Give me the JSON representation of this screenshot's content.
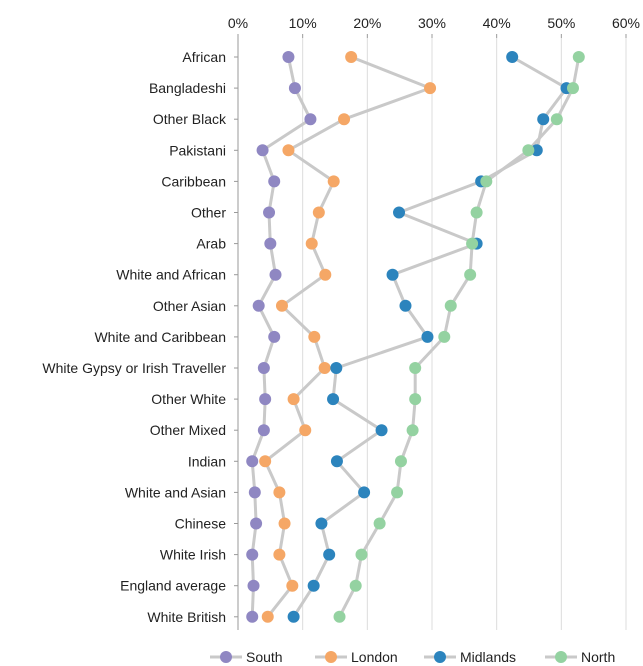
{
  "chart_data": {
    "type": "scatter",
    "orientation": "horizontal",
    "x_ticks": [
      "0%",
      "10%",
      "20%",
      "30%",
      "40%",
      "50%",
      "60%"
    ],
    "xlim": [
      0,
      60
    ],
    "x_axis_position": "top",
    "grid": "vertical",
    "legend_position": "bottom",
    "connector_color": "#c9c9c9",
    "categories": [
      "African",
      "Bangladeshi",
      "Other Black",
      "Pakistani",
      "Caribbean",
      "Other",
      "Arab",
      "White and African",
      "Other Asian",
      "White and Caribbean",
      "White Gypsy or Irish Traveller",
      "Other White",
      "Other Mixed",
      "Indian",
      "White and Asian",
      "Chinese",
      "White Irish",
      "England average",
      "White British"
    ],
    "series": [
      {
        "name": "South",
        "color": "#8f87c2",
        "values": [
          7.8,
          8.8,
          11.2,
          3.8,
          5.6,
          4.8,
          5.0,
          5.8,
          3.2,
          5.6,
          4.0,
          4.2,
          4.0,
          2.2,
          2.6,
          2.8,
          2.2,
          2.4,
          2.2
        ]
      },
      {
        "name": "London",
        "color": "#f5a766",
        "values": [
          17.5,
          29.7,
          16.4,
          7.8,
          14.8,
          12.5,
          11.4,
          13.5,
          6.8,
          11.8,
          13.4,
          8.6,
          10.4,
          4.2,
          6.4,
          7.2,
          6.4,
          8.4,
          4.6
        ]
      },
      {
        "name": "Midlands",
        "color": "#2c84bd",
        "values": [
          42.4,
          50.8,
          47.2,
          46.2,
          37.6,
          24.9,
          36.9,
          23.9,
          25.9,
          29.3,
          15.2,
          14.7,
          22.2,
          15.3,
          19.5,
          12.9,
          14.1,
          11.7,
          8.6
        ]
      },
      {
        "name": "North",
        "color": "#94d2a1",
        "values": [
          52.7,
          51.8,
          49.3,
          44.9,
          38.4,
          36.9,
          36.2,
          35.9,
          32.9,
          31.9,
          27.4,
          27.4,
          27.0,
          25.2,
          24.6,
          21.9,
          19.1,
          18.2,
          15.7
        ]
      }
    ]
  }
}
